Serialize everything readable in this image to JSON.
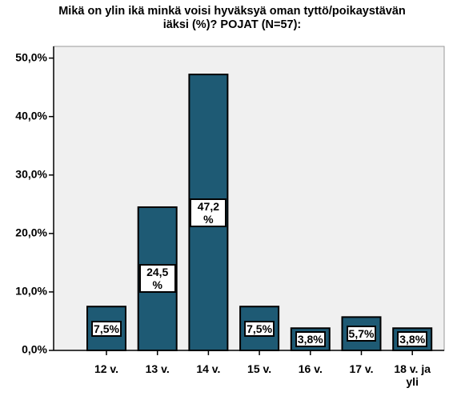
{
  "chart_data": {
    "type": "bar",
    "title": "Mikä on ylin ikä minkä voisi hyväksyä oman tyttö/poikaystävän iäksi (%)? POJAT (N=57):",
    "categories": [
      "12 v.",
      "13 v.",
      "14 v.",
      "15 v.",
      "16 v.",
      "17 v.",
      "18 v. ja yli"
    ],
    "values": [
      7.5,
      24.5,
      47.2,
      7.5,
      3.8,
      5.7,
      3.8
    ],
    "value_labels": [
      "7,5%",
      "24,5 %",
      "47,2 %",
      "7,5%",
      "3,8%",
      "5,7%",
      "3,8%"
    ],
    "color": "#1e5a74",
    "ylim": [
      0,
      52
    ],
    "yticks": [
      {
        "value": 0,
        "label": "0,0%"
      },
      {
        "value": 10,
        "label": "10,0%"
      },
      {
        "value": 20,
        "label": "20,0%"
      },
      {
        "value": 30,
        "label": "30,0%"
      },
      {
        "value": 40,
        "label": "40,0%"
      },
      {
        "value": 50,
        "label": "50,0%"
      }
    ],
    "grid": false
  }
}
